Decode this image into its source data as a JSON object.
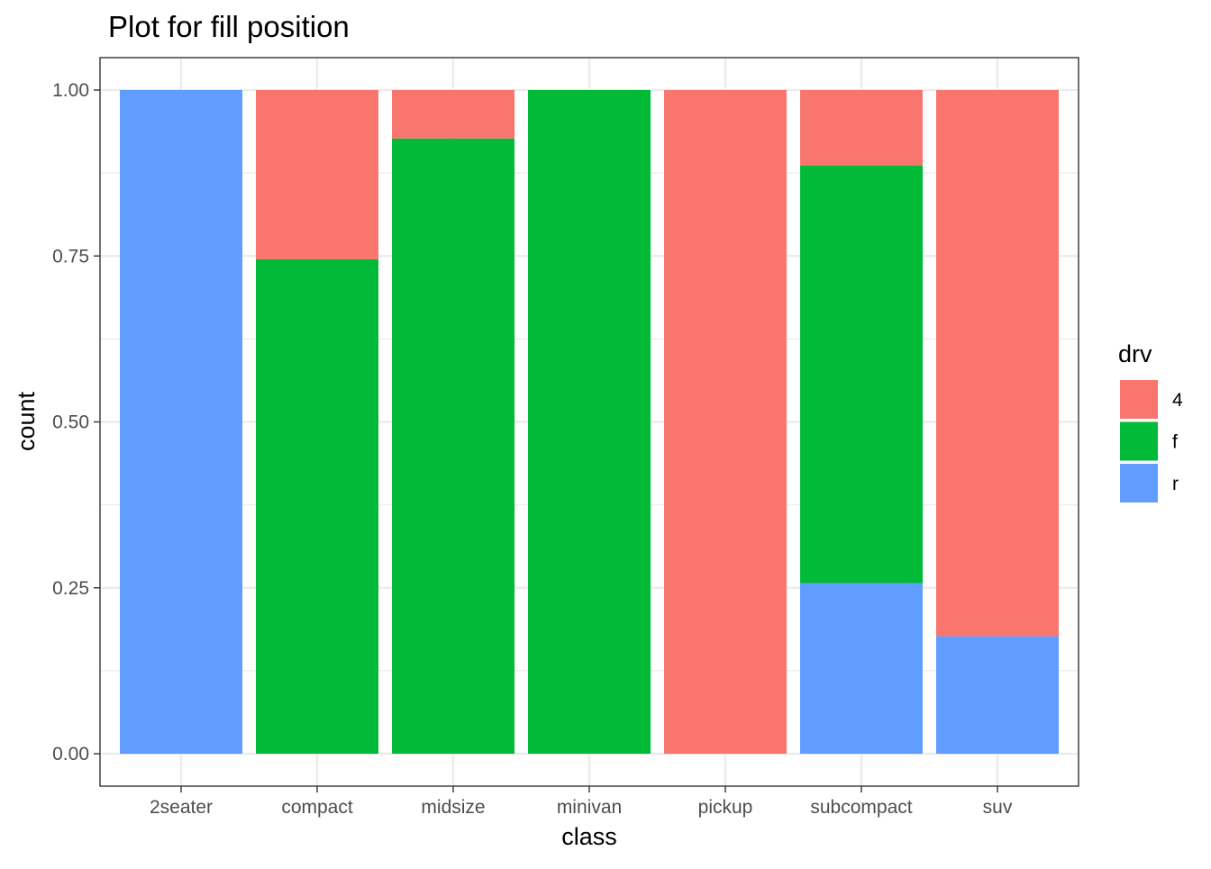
{
  "chart_data": {
    "type": "bar",
    "stacked": true,
    "title": "Plot for fill position",
    "xlabel": "class",
    "ylabel": "count",
    "ylim": [
      0,
      1
    ],
    "yticks": [
      "0.00",
      "0.25",
      "0.50",
      "0.75",
      "1.00"
    ],
    "grid": true,
    "legend_position": "right",
    "legend_title": "drv",
    "categories": [
      "2seater",
      "compact",
      "midsize",
      "minivan",
      "pickup",
      "subcompact",
      "suv"
    ],
    "series": [
      {
        "name": "4",
        "color": "#F8766D",
        "values": [
          0,
          0.255,
          0.073,
          0,
          1,
          0.114,
          0.823
        ]
      },
      {
        "name": "f",
        "color": "#00BA38",
        "values": [
          0,
          0.745,
          0.927,
          1,
          0,
          0.629,
          0
        ]
      },
      {
        "name": "r",
        "color": "#619CFF",
        "values": [
          1,
          0,
          0,
          0,
          0,
          0.257,
          0.177
        ]
      }
    ]
  }
}
